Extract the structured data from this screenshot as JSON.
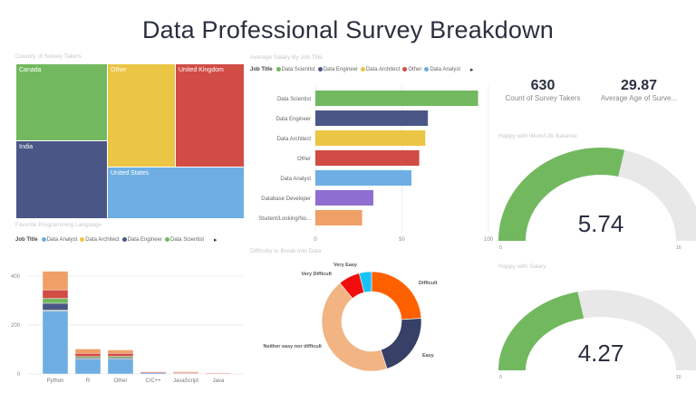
{
  "title": "Data Professional Survey Breakdown",
  "treemap": {
    "title": "Country of Survey Takers",
    "items": [
      {
        "label": "Canada",
        "color": "#72b85f"
      },
      {
        "label": "India",
        "color": "#4a5786"
      },
      {
        "label": "Other",
        "color": "#ebc544"
      },
      {
        "label": "United Kingdom",
        "color": "#d04c45"
      },
      {
        "label": "United States",
        "color": "#6eaee2"
      }
    ]
  },
  "salary": {
    "title": "Average Salary By Job Title",
    "legend_title": "Job Title",
    "legend": [
      {
        "label": "Data Scientist",
        "color": "#72b85f"
      },
      {
        "label": "Data Engineer",
        "color": "#4a5786"
      },
      {
        "label": "Data Architect",
        "color": "#ebc544"
      },
      {
        "label": "Other",
        "color": "#d04c45"
      },
      {
        "label": "Data Analyst",
        "color": "#6eaee2"
      }
    ]
  },
  "languages": {
    "title": "Favorite Programming Language",
    "legend_title": "Job Title",
    "legend": [
      {
        "label": "Data Analyst",
        "color": "#6eaee2"
      },
      {
        "label": "Data Architect",
        "color": "#ebc544"
      },
      {
        "label": "Data Engineer",
        "color": "#4a5786"
      },
      {
        "label": "Data Scientist",
        "color": "#72b85f"
      }
    ]
  },
  "difficulty": {
    "title": "Difficulty to Break into Data"
  },
  "kpis": [
    {
      "value": "630",
      "label": "Count of Survey Takers"
    },
    {
      "value": "29.87",
      "label": "Average Age of Surve..."
    }
  ],
  "gauges": [
    {
      "title": "Happy with Work/Life Balance",
      "value": "5.74",
      "min": "0",
      "max": "10"
    },
    {
      "title": "Happy with Salary",
      "value": "4.27",
      "min": "0",
      "max": "10"
    }
  ],
  "chart_data": [
    {
      "type": "bar",
      "orientation": "horizontal",
      "title": "Average Salary By Job Title",
      "categories": [
        "Data Scientist",
        "Data Engineer",
        "Data Architect",
        "Other",
        "Data Analyst",
        "Database Developer",
        "Student/Looking/No..."
      ],
      "values": [
        94,
        65,
        63.5,
        60,
        55.5,
        33.5,
        27
      ],
      "colors": [
        "#72b85f",
        "#4a5786",
        "#ebc544",
        "#d04c45",
        "#6eaee2",
        "#8e6fd1",
        "#f0a066"
      ],
      "xlim": [
        0,
        100
      ],
      "xticks": [
        "0",
        "50",
        "100"
      ]
    },
    {
      "type": "bar",
      "stacked": true,
      "title": "Favorite Programming Language",
      "categories": [
        "Python",
        "R",
        "Other",
        "C/C++",
        "JavaScript",
        "Java"
      ],
      "ylim": [
        0,
        450
      ],
      "yticks": [
        "0",
        "200",
        "400"
      ],
      "series": [
        {
          "name": "Data Analyst",
          "color": "#6eaee2",
          "values": [
            258,
            60,
            60,
            5,
            2,
            0
          ]
        },
        {
          "name": "Data Architect",
          "color": "#ebc544",
          "values": [
            3,
            1,
            1,
            0,
            0,
            0
          ]
        },
        {
          "name": "Data Engineer",
          "color": "#4a5786",
          "values": [
            28,
            5,
            5,
            0,
            0,
            0
          ]
        },
        {
          "name": "Data Scientist",
          "color": "#72b85f",
          "values": [
            20,
            5,
            6,
            0,
            0,
            0
          ]
        },
        {
          "name": "",
          "color": "#d04c45",
          "values": [
            35,
            13,
            12,
            4,
            4,
            3
          ]
        },
        {
          "name": "",
          "color": "#f0a066",
          "values": [
            76,
            18,
            14,
            1,
            3,
            1
          ]
        }
      ]
    },
    {
      "type": "pie",
      "donut": true,
      "title": "Difficulty to Break into Data",
      "categories": [
        "Difficult",
        "Easy",
        "Neither easy nor difficult",
        "Very Difficult",
        "Very Easy"
      ],
      "values": [
        24,
        21,
        44,
        7,
        4
      ],
      "colors": [
        "#fe6000",
        "#374066",
        "#f2b482",
        "#f00d0d",
        "#16c2f8"
      ]
    }
  ]
}
